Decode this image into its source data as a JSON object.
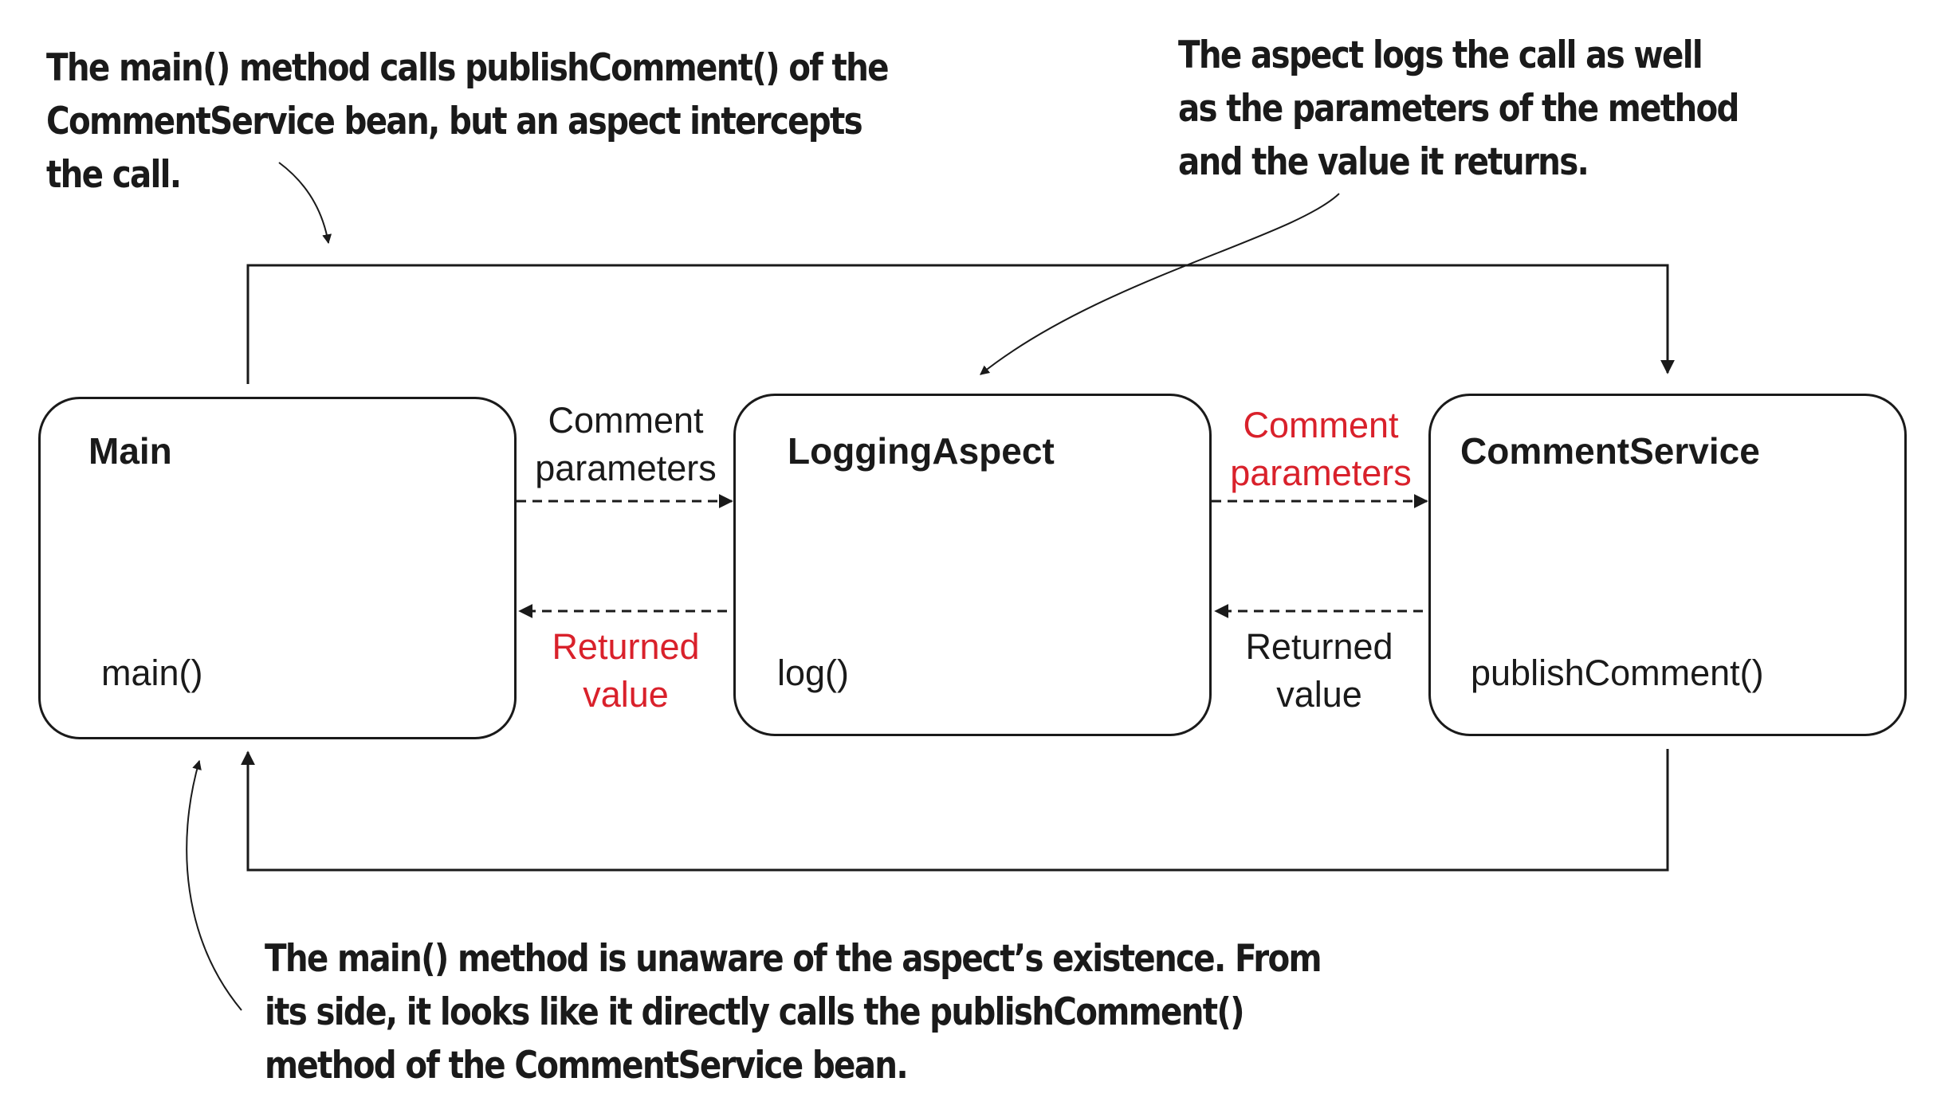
{
  "annotations": {
    "top_left": [
      "The main() method calls publishComment() of the",
      "CommentService bean, but an aspect intercepts",
      "the call."
    ],
    "top_right": [
      "The aspect logs the call as well",
      "as the parameters of the method",
      "and the value it returns."
    ],
    "bottom": [
      "The main() method is unaware of the aspect’s existence. From",
      "its side, it looks like it directly calls the publishComment()",
      "method of the CommentService bean."
    ]
  },
  "boxes": {
    "main": {
      "title": "Main",
      "method": "main()"
    },
    "logging_aspect": {
      "title": "LoggingAspect",
      "method": "log()"
    },
    "comment_service": {
      "title": "CommentService",
      "method": "publishComment()"
    }
  },
  "edges": {
    "main_to_aspect": {
      "lines": [
        "Comment",
        "parameters"
      ],
      "color": "#1a1a1a"
    },
    "aspect_to_main": {
      "lines": [
        "Returned",
        "value"
      ],
      "color": "#d9212b"
    },
    "aspect_to_service": {
      "lines": [
        "Comment",
        "parameters"
      ],
      "color": "#d9212b"
    },
    "service_to_aspect": {
      "lines": [
        "Returned",
        "value"
      ],
      "color": "#1a1a1a"
    }
  },
  "colors": {
    "ink": "#1a1a1a",
    "highlight_red": "#d9212b",
    "background": "#ffffff"
  }
}
